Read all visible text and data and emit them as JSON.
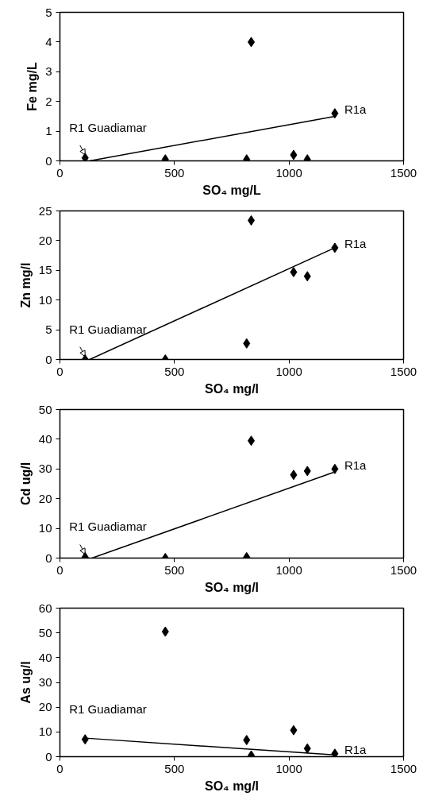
{
  "chart_data": [
    {
      "type": "scatter",
      "xlabel": "SO₄ mg/L",
      "ylabel": "Fe mg/L",
      "xlim": [
        0,
        1500
      ],
      "xticks": [
        0,
        500,
        1000,
        1500
      ],
      "ylim": [
        0,
        5
      ],
      "yticks": [
        0,
        1,
        2,
        3,
        4,
        5
      ],
      "grid": false,
      "series": [
        {
          "marker": "diamond",
          "color": "#000000",
          "x": [
            110,
            460,
            815,
            835,
            1020,
            1080,
            1200
          ],
          "values": [
            0.1,
            0.05,
            0.05,
            4.0,
            0.2,
            0.05,
            1.6
          ]
        },
        {
          "type": "line",
          "color": "#000000",
          "x": [
            130,
            1200
          ],
          "values": [
            0,
            1.5
          ]
        }
      ],
      "annotations": [
        "R1 Guadiamar",
        "R1a"
      ]
    },
    {
      "type": "scatter",
      "xlabel": "SO₄ mg/l",
      "ylabel": "Zn mg/l",
      "xlim": [
        0,
        1500
      ],
      "xticks": [
        0,
        500,
        1000,
        1500
      ],
      "ylim": [
        0,
        25
      ],
      "yticks": [
        0,
        5,
        10,
        15,
        20,
        25
      ],
      "grid": false,
      "series": [
        {
          "marker": "diamond",
          "color": "#000000",
          "x": [
            110,
            460,
            815,
            835,
            1020,
            1080,
            1200
          ],
          "values": [
            0,
            0,
            2.7,
            23.4,
            14.7,
            14.0,
            18.8
          ]
        },
        {
          "type": "line",
          "color": "#000000",
          "x": [
            130,
            1200
          ],
          "values": [
            0,
            18.8
          ]
        }
      ],
      "annotations": [
        "R1 Guadiamar",
        "R1a"
      ]
    },
    {
      "type": "scatter",
      "xlabel": "SO₄ mg/l",
      "ylabel": "Cd ug/l",
      "xlim": [
        0,
        1500
      ],
      "xticks": [
        0,
        500,
        1000,
        1500
      ],
      "ylim": [
        0,
        50
      ],
      "yticks": [
        0,
        10,
        20,
        30,
        40,
        50
      ],
      "grid": false,
      "series": [
        {
          "marker": "diamond",
          "color": "#000000",
          "x": [
            110,
            460,
            815,
            835,
            1020,
            1080,
            1200
          ],
          "values": [
            0.3,
            0,
            0.3,
            39.5,
            28,
            29.3,
            30
          ]
        },
        {
          "type": "line",
          "color": "#000000",
          "x": [
            140,
            1200
          ],
          "values": [
            0,
            29
          ]
        }
      ],
      "annotations": [
        "R1 Guadiamar",
        "R1a"
      ]
    },
    {
      "type": "scatter",
      "xlabel": "SO₄ mg/l",
      "ylabel": "As ug/l",
      "xlim": [
        0,
        1500
      ],
      "xticks": [
        0,
        500,
        1000,
        1500
      ],
      "ylim": [
        0,
        60
      ],
      "yticks": [
        0,
        10,
        20,
        30,
        40,
        50,
        60
      ],
      "grid": false,
      "series": [
        {
          "marker": "diamond",
          "color": "#000000",
          "x": [
            110,
            460,
            815,
            835,
            1020,
            1080,
            1200
          ],
          "values": [
            7,
            50.5,
            6.7,
            0.5,
            10.7,
            3.3,
            1.2
          ]
        },
        {
          "type": "line",
          "color": "#000000",
          "x": [
            110,
            1200
          ],
          "values": [
            7.5,
            0.7
          ]
        }
      ],
      "annotations": [
        "R1 Guadiamar",
        "R1a"
      ]
    }
  ]
}
